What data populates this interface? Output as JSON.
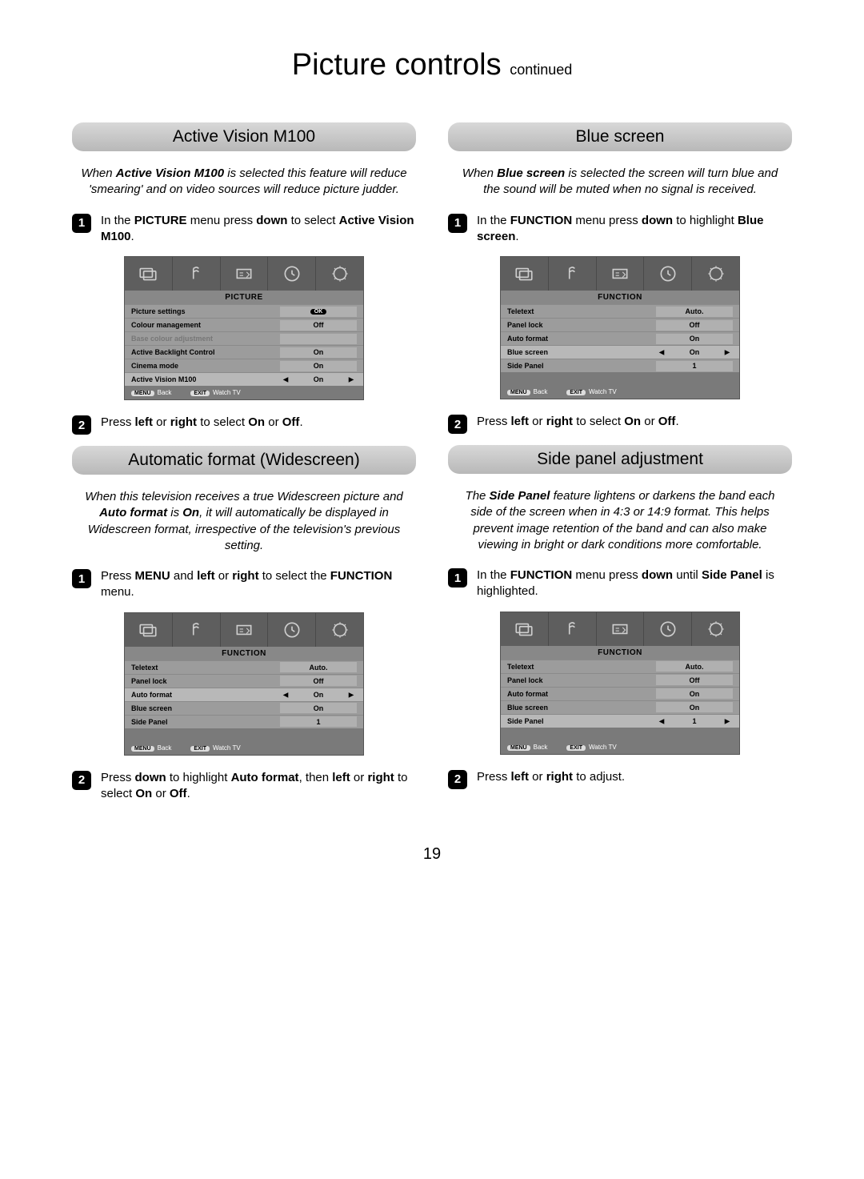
{
  "page": {
    "title_main": "Picture controls",
    "title_sub": "continued",
    "number": "19"
  },
  "sections": {
    "active_vision": {
      "header": "Active Vision M100",
      "intro_pre": "When ",
      "intro_bold": "Active Vision M100",
      "intro_post": " is selected this feature will reduce 'smearing' and on video sources will reduce picture judder.",
      "step1_a": "In the ",
      "step1_b": "PICTURE",
      "step1_c": " menu press ",
      "step1_d": "down",
      "step1_e": " to select ",
      "step1_f": "Active Vision M100",
      "step1_g": ".",
      "step2_a": "Press ",
      "step2_b": "left",
      "step2_c": " or ",
      "step2_d": "right",
      "step2_e": " to select ",
      "step2_f": "On",
      "step2_g": " or ",
      "step2_h": "Off",
      "step2_i": "."
    },
    "auto_format": {
      "header": "Automatic format (Widescreen)",
      "intro_a": "When this television receives a true Widescreen picture and ",
      "intro_b": "Auto format",
      "intro_c": " is ",
      "intro_d": "On",
      "intro_e": ", it will automatically be displayed in Widescreen format, irrespective of the television's previous setting.",
      "step1_a": "Press ",
      "step1_b": "MENU",
      "step1_c": " and ",
      "step1_d": "left",
      "step1_e": " or ",
      "step1_f": "right",
      "step1_g": " to select the ",
      "step1_h": "FUNCTION",
      "step1_i": " menu.",
      "step2_a": "Press ",
      "step2_b": "down",
      "step2_c": " to highlight ",
      "step2_d": "Auto format",
      "step2_e": ", then ",
      "step2_f": "left",
      "step2_g": " or ",
      "step2_h": "right",
      "step2_i": " to select ",
      "step2_j": "On",
      "step2_k": " or ",
      "step2_l": "Off",
      "step2_m": "."
    },
    "blue_screen": {
      "header": "Blue screen",
      "intro_a": "When ",
      "intro_b": "Blue screen",
      "intro_c": " is selected the screen will turn blue and the sound will be muted when no signal is received.",
      "step1_a": "In the ",
      "step1_b": "FUNCTION",
      "step1_c": " menu press ",
      "step1_d": "down",
      "step1_e": " to highlight ",
      "step1_f": "Blue screen",
      "step1_g": ".",
      "step2_a": "Press ",
      "step2_b": "left",
      "step2_c": " or ",
      "step2_d": "right",
      "step2_e": " to select ",
      "step2_f": "On",
      "step2_g": " or ",
      "step2_h": "Off",
      "step2_i": "."
    },
    "side_panel": {
      "header": "Side panel adjustment",
      "intro_a": "The ",
      "intro_b": "Side Panel",
      "intro_c": " feature lightens or darkens the band each side of the screen when in 4:3 or 14:9 format. This helps prevent image retention of the band and can also make viewing in bright or dark conditions more comfortable.",
      "step1_a": "In the ",
      "step1_b": "FUNCTION",
      "step1_c": " menu press ",
      "step1_d": "down",
      "step1_e": " until ",
      "step1_f": "Side Panel",
      "step1_g": " is highlighted.",
      "step2_a": "Press ",
      "step2_b": "left",
      "step2_c": " or ",
      "step2_d": "right",
      "step2_e": " to adjust."
    }
  },
  "osd": {
    "footer_menu": "MENU",
    "footer_back": "Back",
    "footer_exit": "EXIT",
    "footer_watch": "Watch TV",
    "picture": {
      "title": "PICTURE",
      "rows": [
        {
          "label": "Picture settings",
          "val": "OK",
          "ok": true
        },
        {
          "label": "Colour management",
          "val": "Off"
        },
        {
          "label": "Base colour adjustment",
          "val": "",
          "disabled": true
        },
        {
          "label": "Active Backlight Control",
          "val": "On"
        },
        {
          "label": "Cinema mode",
          "val": "On"
        },
        {
          "label": "Active Vision M100",
          "val": "On",
          "selected": true,
          "arrows": true
        }
      ]
    },
    "function_auto": {
      "title": "FUNCTION",
      "rows": [
        {
          "label": "Teletext",
          "val": "Auto."
        },
        {
          "label": "Panel lock",
          "val": "Off"
        },
        {
          "label": "Auto format",
          "val": "On",
          "selected": true,
          "arrows": true
        },
        {
          "label": "Blue screen",
          "val": "On"
        },
        {
          "label": "Side Panel",
          "val": "1"
        }
      ]
    },
    "function_blue": {
      "title": "FUNCTION",
      "rows": [
        {
          "label": "Teletext",
          "val": "Auto."
        },
        {
          "label": "Panel lock",
          "val": "Off"
        },
        {
          "label": "Auto format",
          "val": "On"
        },
        {
          "label": "Blue screen",
          "val": "On",
          "selected": true,
          "arrows": true
        },
        {
          "label": "Side Panel",
          "val": "1"
        }
      ]
    },
    "function_side": {
      "title": "FUNCTION",
      "rows": [
        {
          "label": "Teletext",
          "val": "Auto."
        },
        {
          "label": "Panel lock",
          "val": "Off"
        },
        {
          "label": "Auto format",
          "val": "On"
        },
        {
          "label": "Blue screen",
          "val": "On"
        },
        {
          "label": "Side Panel",
          "val": "1",
          "selected": true,
          "arrows": true
        }
      ]
    }
  }
}
